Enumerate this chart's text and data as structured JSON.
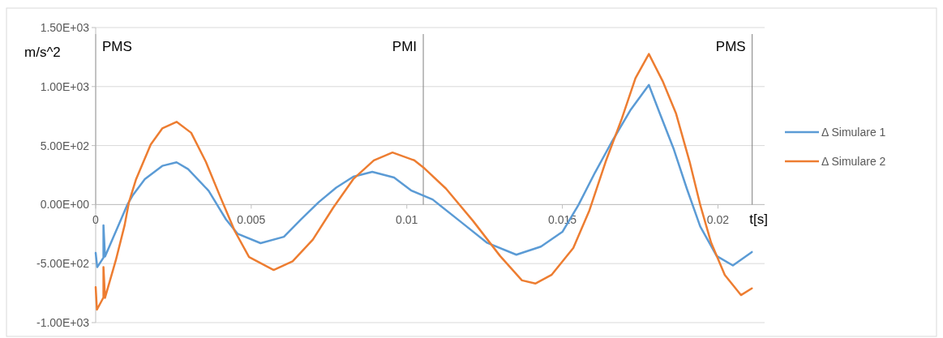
{
  "chart_data": {
    "type": "line",
    "ylabel": "m/s^2",
    "xlabel": "t[s]",
    "xlim": [
      0,
      0.0215
    ],
    "xticks": [
      0,
      0.005,
      0.01,
      0.015,
      0.02
    ],
    "ylim": [
      -1000,
      1500
    ],
    "yticks": [
      {
        "value": -1000,
        "label": "-1.00E+03"
      },
      {
        "value": -500,
        "label": "-5.00E+02"
      },
      {
        "value": 0,
        "label": "0.00E+00"
      },
      {
        "value": 500,
        "label": "5.00E+02"
      },
      {
        "value": 1000,
        "label": "1.00E+03"
      },
      {
        "value": 1500,
        "label": "1.50E+03"
      }
    ],
    "grid": "y",
    "legend": "right",
    "ref_lines": [
      {
        "axis": "x",
        "value": 0,
        "label": "PMS",
        "color": "#a6a6a6"
      },
      {
        "axis": "x",
        "value": 0.01053,
        "label": "PMI",
        "color": "#808080"
      },
      {
        "axis": "x",
        "value": 0.0211,
        "label": "PMS",
        "color": "#808080"
      }
    ],
    "series": [
      {
        "name": "Δ Simulare 1",
        "color": "#5b9bd5",
        "x": [
          0,
          5e-05,
          0.00025,
          0.00025,
          0.0003,
          0.00102,
          0.0012,
          0.00158,
          0.00214,
          0.0026,
          0.00297,
          0.00363,
          0.00419,
          0.00456,
          0.0053,
          0.00605,
          0.0066,
          0.00717,
          0.00773,
          0.00828,
          0.00889,
          0.00959,
          0.01015,
          0.01083,
          0.0117,
          0.01257,
          0.01352,
          0.01431,
          0.015,
          0.01552,
          0.01605,
          0.01657,
          0.01718,
          0.01778,
          0.01813,
          0.01857,
          0.019,
          0.01943,
          0.01996,
          0.02048,
          0.02109
        ],
        "values": [
          -410,
          -530,
          -450,
          -175,
          -440,
          0,
          82,
          216,
          328,
          358,
          301,
          117,
          -126,
          -247,
          -327,
          -273,
          -126,
          21,
          144,
          236,
          277,
          229,
          118,
          43,
          -139,
          -322,
          -425,
          -356,
          -231,
          -2,
          272,
          523,
          797,
          1014,
          774,
          477,
          135,
          -185,
          -436,
          -516,
          -402
        ]
      },
      {
        "name": "Δ Simulare 2",
        "color": "#ed7d31",
        "x": [
          0,
          4e-05,
          0.00025,
          0.00025,
          0.0003,
          0.00065,
          0.00093,
          0.00107,
          0.0013,
          0.00177,
          0.00214,
          0.0026,
          0.00307,
          0.00354,
          0.004,
          0.00447,
          0.00493,
          0.00572,
          0.00633,
          0.00698,
          0.00763,
          0.00828,
          0.00894,
          0.00954,
          0.01024,
          0.01057,
          0.01126,
          0.01213,
          0.013,
          0.0137,
          0.01413,
          0.01465,
          0.01535,
          0.01587,
          0.01639,
          0.01691,
          0.01735,
          0.01778,
          0.01822,
          0.01865,
          0.01909,
          0.01943,
          0.01978,
          0.02022,
          0.02074,
          0.02109
        ],
        "values": [
          -700,
          -890,
          -787,
          -530,
          -790,
          -469,
          -175,
          21,
          216,
          510,
          645,
          701,
          608,
          363,
          69,
          -224,
          -445,
          -554,
          -481,
          -297,
          -28,
          216,
          375,
          441,
          375,
          306,
          135,
          -139,
          -436,
          -642,
          -669,
          -596,
          -368,
          -48,
          363,
          728,
          1071,
          1276,
          1048,
          774,
          363,
          -2,
          -322,
          -596,
          -767,
          -710
        ]
      }
    ]
  }
}
